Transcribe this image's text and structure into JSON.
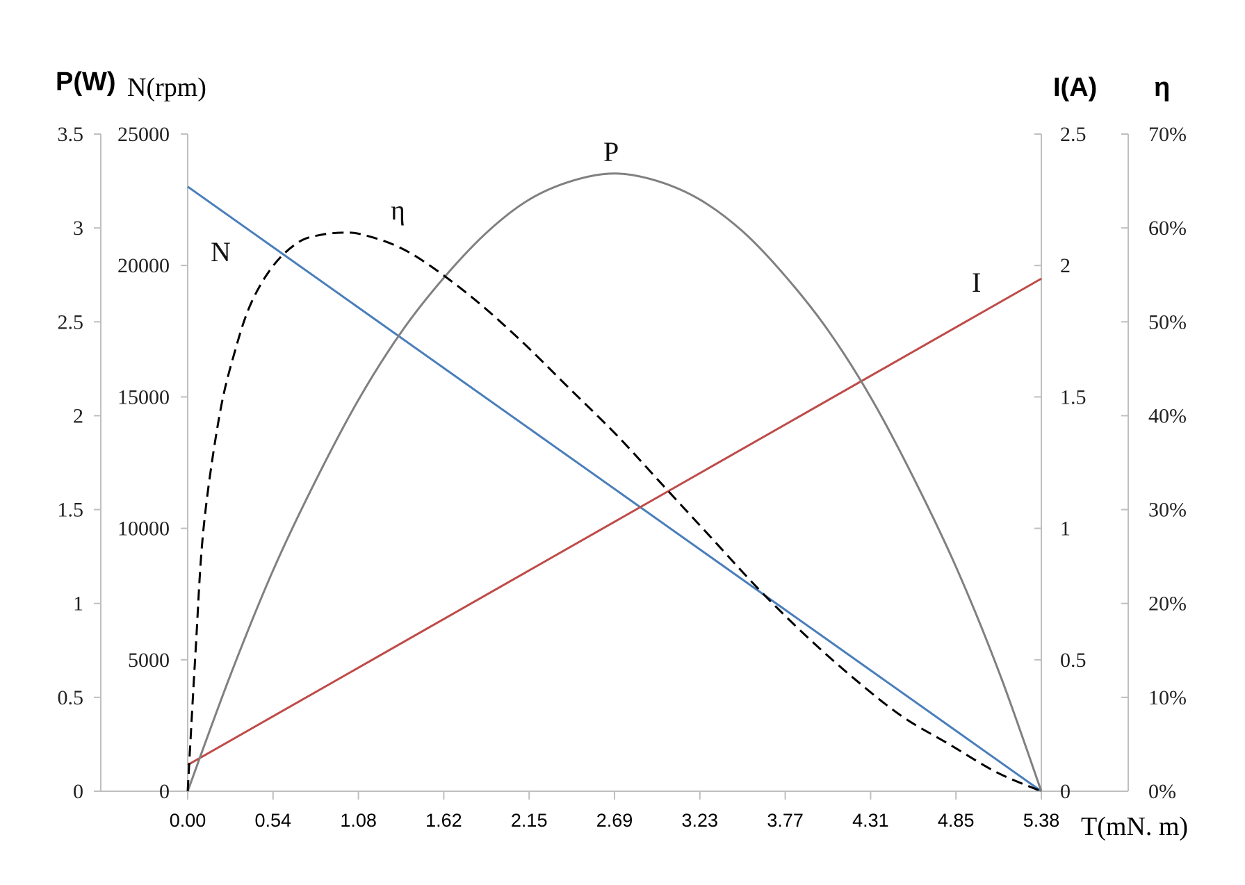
{
  "chart_data": {
    "type": "line",
    "x_axis": {
      "label": "T(mN. m)",
      "min": 0,
      "max": 5.38,
      "ticks": [
        "0.00",
        "0.54",
        "1.08",
        "1.62",
        "2.15",
        "2.69",
        "3.23",
        "3.77",
        "4.31",
        "4.85",
        "5.38"
      ]
    },
    "y_axes": {
      "power": {
        "label": "P(W)",
        "min": 0,
        "max": 3.5,
        "ticks": [
          "0",
          "0.5",
          "1",
          "1.5",
          "2",
          "2.5",
          "3",
          "3.5"
        ]
      },
      "speed": {
        "label": "N(rpm)",
        "min": 0,
        "max": 25000,
        "ticks": [
          "0",
          "5000",
          "10000",
          "15000",
          "20000",
          "25000"
        ]
      },
      "current": {
        "label": "I(A)",
        "min": 0,
        "max": 2.5,
        "ticks": [
          "0",
          "0.5",
          "1",
          "1.5",
          "2",
          "2.5"
        ]
      },
      "efficiency": {
        "label": "η",
        "min": 0,
        "max": 70,
        "unit": "%",
        "ticks": [
          "0%",
          "10%",
          "20%",
          "30%",
          "40%",
          "50%",
          "60%",
          "70%"
        ]
      }
    },
    "series": [
      {
        "name": "N",
        "axis": "speed",
        "color": "#4a7ebb",
        "dashed": false,
        "x": [
          0,
          5.38
        ],
        "y": [
          23000,
          0
        ]
      },
      {
        "name": "I",
        "axis": "current",
        "color": "#be4b48",
        "dashed": false,
        "x": [
          0,
          5.38
        ],
        "y": [
          0.1,
          1.95
        ]
      },
      {
        "name": "P",
        "axis": "power",
        "color": "#808080",
        "dashed": false,
        "x": [
          0,
          0.27,
          0.54,
          0.81,
          1.08,
          1.35,
          1.62,
          1.89,
          2.15,
          2.42,
          2.69,
          2.96,
          3.23,
          3.5,
          3.77,
          4.04,
          4.31,
          4.58,
          4.85,
          5.12,
          5.38
        ],
        "y": [
          0,
          0.62,
          1.18,
          1.66,
          2.09,
          2.45,
          2.74,
          2.98,
          3.15,
          3.25,
          3.29,
          3.25,
          3.15,
          2.98,
          2.74,
          2.45,
          2.09,
          1.66,
          1.18,
          0.62,
          0
        ]
      },
      {
        "name": "η",
        "axis": "efficiency",
        "color": "#000000",
        "dashed": true,
        "x": [
          0,
          0.05,
          0.1,
          0.2,
          0.3,
          0.4,
          0.54,
          0.7,
          0.85,
          1.0,
          1.1,
          1.3,
          1.5,
          1.8,
          2.1,
          2.4,
          2.7,
          3.0,
          3.3,
          3.6,
          3.9,
          4.2,
          4.5,
          4.8,
          5.1,
          5.38
        ],
        "y": [
          0,
          15,
          28,
          40,
          47,
          52,
          56,
          58.5,
          59.3,
          59.5,
          59.3,
          58.2,
          56.3,
          52.5,
          48,
          43,
          38,
          32.5,
          27,
          21.5,
          16.5,
          12,
          8,
          5,
          2,
          0
        ]
      }
    ],
    "curve_labels": [
      "N",
      "η",
      "P",
      "I"
    ],
    "grid": false,
    "legend": "none"
  }
}
